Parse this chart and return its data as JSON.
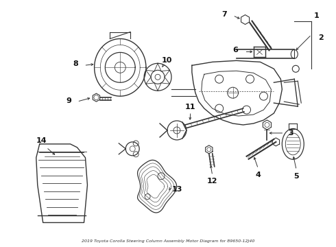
{
  "title": "2019 Toyota Corolla Steering Column Assembly Motor Diagram for 89650-12J40",
  "bg_color": "#ffffff",
  "line_color": "#333333",
  "fig_width": 4.9,
  "fig_height": 3.6,
  "dpi": 100,
  "footnote": "2019 Toyota Corolla Steering Column Assembly Motor Diagram for 89650-12J40"
}
